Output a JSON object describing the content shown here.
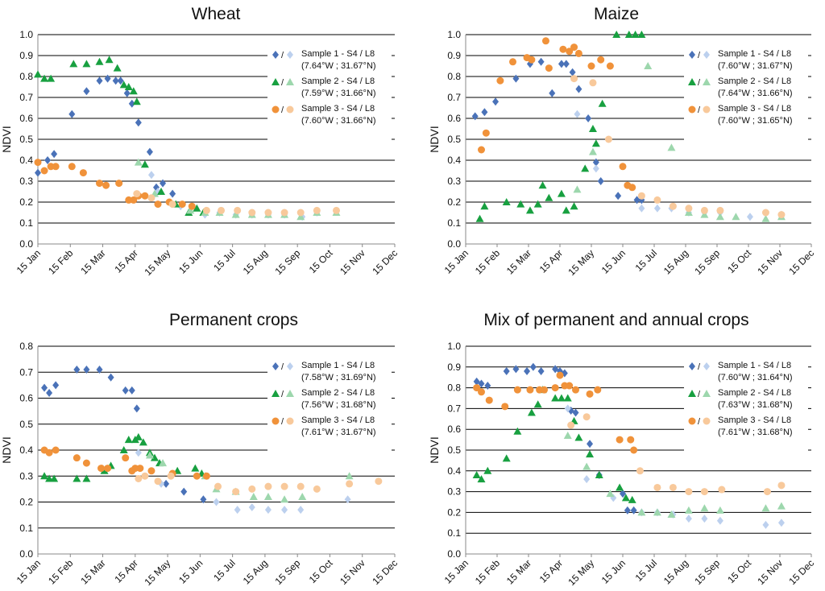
{
  "months": [
    "15 Jan",
    "15 Feb",
    "15 Mar",
    "15 Apr",
    "15 May",
    "15 Jun",
    "15 Jul",
    "15 Aug",
    "15 Sep",
    "15 Oct",
    "15 Nov",
    "15 Dec"
  ],
  "colors": {
    "s4_1": "#4a72b8",
    "l8_1": "#bcd0ee",
    "s4_2": "#18a040",
    "l8_2": "#9dd7ad",
    "s4_3": "#f0923a",
    "l8_3": "#f8c99b"
  },
  "chart_data": [
    {
      "type": "scatter",
      "title": "Wheat",
      "ylabel": "NDVI",
      "ylim": [
        0,
        1
      ],
      "ystep": 0.1,
      "yticks": [
        "0.0",
        "0.1",
        "0.2",
        "0.3",
        "0.4",
        "0.5",
        "0.6",
        "0.7",
        "0.8",
        "0.9",
        "1.0"
      ],
      "xlim": [
        "15 Jan",
        "15 Dec"
      ],
      "legend": [
        {
          "name": "Sample 1 - S4 / L8",
          "coords": "(7.64°W ; 31.67°N)"
        },
        {
          "name": "Sample 2 - S4 / L8",
          "coords": "(7.59°W ; 31.66°N)"
        },
        {
          "name": "Sample 3 - S4 / L8",
          "coords": "(7.60°W ; 31.66°N)"
        }
      ],
      "series": [
        {
          "sample": 1,
          "sensor": "S4",
          "marker": "diamond",
          "x": [
            0,
            0.3,
            0.5,
            1.05,
            1.5,
            1.9,
            2.15,
            2.4,
            2.55,
            2.75,
            2.9,
            3.1,
            3.45,
            3.65,
            3.85,
            4.15
          ],
          "y": [
            0.34,
            0.4,
            0.43,
            0.62,
            0.73,
            0.78,
            0.79,
            0.78,
            0.78,
            0.72,
            0.67,
            0.58,
            0.44,
            0.27,
            0.29,
            0.24
          ]
        },
        {
          "sample": 1,
          "sensor": "L8",
          "marker": "diamond",
          "x": [
            3.5,
            3.7,
            4.4,
            5.15,
            5.6,
            6.1,
            6.6,
            7.1,
            7.6,
            8.15,
            8.6
          ],
          "y": [
            0.33,
            0.25,
            0.18,
            0.14,
            0.15,
            0.14,
            0.14,
            0.14,
            0.14,
            0.13,
            0.15
          ]
        },
        {
          "sample": 2,
          "sensor": "S4",
          "marker": "triangle",
          "x": [
            0,
            0.2,
            0.4,
            1.1,
            1.5,
            1.9,
            2.2,
            2.45,
            2.65,
            2.8,
            2.95,
            3.05,
            3.3,
            3.8,
            4.25,
            4.65,
            4.9,
            5.1
          ],
          "y": [
            0.81,
            0.79,
            0.79,
            0.86,
            0.86,
            0.87,
            0.88,
            0.84,
            0.76,
            0.75,
            0.73,
            0.68,
            0.38,
            0.25,
            0.19,
            0.15,
            0.17,
            0.15
          ]
        },
        {
          "sample": 2,
          "sensor": "L8",
          "marker": "triangle",
          "x": [
            3.1,
            3.6,
            4.7,
            5.15,
            5.6,
            6.1,
            6.6,
            7.1,
            7.6,
            8.1,
            8.6,
            9.2
          ],
          "y": [
            0.39,
            0.24,
            0.16,
            0.15,
            0.15,
            0.14,
            0.14,
            0.14,
            0.14,
            0.13,
            0.15,
            0.15
          ]
        },
        {
          "sample": 3,
          "sensor": "S4",
          "marker": "circle",
          "x": [
            0,
            0.2,
            0.4,
            0.55,
            1.05,
            1.4,
            1.9,
            2.1,
            2.5,
            2.8,
            2.95,
            3.1,
            3.3,
            3.7,
            4.05,
            4.45,
            4.75
          ],
          "y": [
            0.39,
            0.35,
            0.37,
            0.37,
            0.37,
            0.34,
            0.29,
            0.28,
            0.29,
            0.21,
            0.21,
            0.23,
            0.23,
            0.19,
            0.2,
            0.19,
            0.18
          ]
        },
        {
          "sample": 3,
          "sensor": "L8",
          "marker": "circle",
          "x": [
            3.05,
            3.5,
            4.15,
            5.2,
            5.65,
            6.15,
            6.6,
            7.1,
            7.6,
            8.1,
            8.6,
            9.2
          ],
          "y": [
            0.24,
            0.22,
            0.19,
            0.16,
            0.16,
            0.16,
            0.15,
            0.15,
            0.15,
            0.15,
            0.16,
            0.16
          ]
        }
      ]
    },
    {
      "type": "scatter",
      "title": "Maize",
      "ylabel": "NDVI",
      "ylim": [
        0,
        1
      ],
      "ystep": 0.1,
      "yticks": [
        "0.0",
        "0.1",
        "0.2",
        "0.3",
        "0.4",
        "0.5",
        "0.6",
        "0.7",
        "0.8",
        "0.9",
        "1.0"
      ],
      "xlim": [
        "15 Jan",
        "15 Dec"
      ],
      "legend": [
        {
          "name": "Sample 1 - S4 / L8",
          "coords": "(7.60°W ; 31.67°N)"
        },
        {
          "name": "Sample 2 - S4 / L8",
          "coords": "(7.64°W ; 31.66°N)"
        },
        {
          "name": "Sample 3 - S4 / L8",
          "coords": "(7.60°W ; 31.65°N)"
        }
      ],
      "series": [
        {
          "sample": 1,
          "sensor": "S4",
          "marker": "diamond",
          "x": [
            0.3,
            0.6,
            0.95,
            1.6,
            2.05,
            2.4,
            2.75,
            3.05,
            3.2,
            3.4,
            3.6,
            3.9,
            4.15,
            4.3,
            4.85,
            5.45,
            5.6
          ],
          "y": [
            0.61,
            0.63,
            0.68,
            0.79,
            0.86,
            0.87,
            0.72,
            0.86,
            0.86,
            0.82,
            0.74,
            0.6,
            0.39,
            0.3,
            0.23,
            0.21,
            0.21
          ]
        },
        {
          "sample": 1,
          "sensor": "L8",
          "marker": "diamond",
          "x": [
            3.55,
            4.15,
            5.6,
            6.1,
            6.55,
            7.1,
            7.6,
            8.1,
            9.05,
            10.05
          ],
          "y": [
            0.62,
            0.36,
            0.17,
            0.17,
            0.17,
            0.15,
            0.15,
            0.15,
            0.13,
            0.14
          ]
        },
        {
          "sample": 2,
          "sensor": "S4",
          "marker": "triangle",
          "x": [
            0.45,
            0.6,
            1.3,
            1.75,
            2.05,
            2.3,
            2.45,
            2.65,
            3.05,
            3.2,
            3.45,
            3.8,
            4.05,
            4.15,
            4.35,
            4.8,
            5.2,
            5.4,
            5.6
          ],
          "y": [
            0.12,
            0.18,
            0.2,
            0.19,
            0.16,
            0.19,
            0.28,
            0.22,
            0.24,
            0.16,
            0.18,
            0.36,
            0.55,
            0.48,
            0.67,
            1.0,
            1.0,
            1.0,
            1.0
          ]
        },
        {
          "sample": 2,
          "sensor": "L8",
          "marker": "triangle",
          "x": [
            3.55,
            4.05,
            5.8,
            6.55,
            7.1,
            7.6,
            8.1,
            8.6,
            9.55,
            10.05
          ],
          "y": [
            0.26,
            0.44,
            0.85,
            0.46,
            0.15,
            0.14,
            0.13,
            0.13,
            0.12,
            0.13
          ]
        },
        {
          "sample": 3,
          "sensor": "S4",
          "marker": "circle",
          "x": [
            0.5,
            0.65,
            1.1,
            1.5,
            1.95,
            2.1,
            2.55,
            2.65,
            3.1,
            3.3,
            3.45,
            3.6,
            4.0,
            4.3,
            4.6,
            5.0,
            5.15,
            5.3
          ],
          "y": [
            0.45,
            0.53,
            0.78,
            0.87,
            0.89,
            0.88,
            0.97,
            0.84,
            0.93,
            0.92,
            0.94,
            0.91,
            0.85,
            0.88,
            0.85,
            0.37,
            0.28,
            0.27
          ]
        },
        {
          "sample": 3,
          "sensor": "L8",
          "marker": "circle",
          "x": [
            3.45,
            4.05,
            4.55,
            5.6,
            6.1,
            6.6,
            7.1,
            7.6,
            8.1,
            9.55,
            10.05
          ],
          "y": [
            0.79,
            0.77,
            0.5,
            0.23,
            0.21,
            0.18,
            0.17,
            0.16,
            0.16,
            0.15,
            0.14
          ]
        }
      ]
    },
    {
      "type": "scatter",
      "title": "Permanent crops",
      "ylabel": "NDVI",
      "ylim": [
        0,
        0.8
      ],
      "ystep": 0.1,
      "yticks": [
        "0.0",
        "0.1",
        "0.2",
        "0.3",
        "0.4",
        "0.5",
        "0.6",
        "0.7",
        "0.8"
      ],
      "xlim": [
        "15 Jan",
        "15 Dec"
      ],
      "legend": [
        {
          "name": "Sample 1 - S4 / L8",
          "coords": "(7.58°W ; 31.69°N)"
        },
        {
          "name": "Sample 2 - S4 / L8",
          "coords": "(7.56°W ; 31.68°N)"
        },
        {
          "name": "Sample 3 - S4 / L8",
          "coords": "(7.61°W ; 31.67°N)"
        }
      ],
      "series": [
        {
          "sample": 1,
          "sensor": "S4",
          "marker": "diamond",
          "x": [
            0.2,
            0.35,
            0.55,
            1.2,
            1.5,
            1.9,
            2.25,
            2.7,
            2.9,
            3.05,
            3.95,
            4.5,
            5.1
          ],
          "y": [
            0.64,
            0.62,
            0.65,
            0.71,
            0.71,
            0.71,
            0.68,
            0.63,
            0.63,
            0.56,
            0.27,
            0.24,
            0.21
          ]
        },
        {
          "sample": 1,
          "sensor": "L8",
          "marker": "diamond",
          "x": [
            3.1,
            3.8,
            5.5,
            6.15,
            6.6,
            7.1,
            7.6,
            8.1,
            9.55
          ],
          "y": [
            0.39,
            0.27,
            0.2,
            0.17,
            0.18,
            0.17,
            0.17,
            0.17,
            0.21
          ]
        },
        {
          "sample": 2,
          "sensor": "S4",
          "marker": "triangle",
          "x": [
            0.2,
            0.35,
            0.5,
            1.2,
            1.5,
            2.05,
            2.25,
            2.65,
            2.8,
            3.0,
            3.1,
            3.25,
            3.45,
            3.6,
            3.75,
            4.3,
            4.85,
            5.05
          ],
          "y": [
            0.3,
            0.29,
            0.29,
            0.29,
            0.29,
            0.32,
            0.34,
            0.4,
            0.44,
            0.44,
            0.45,
            0.43,
            0.39,
            0.37,
            0.35,
            0.32,
            0.33,
            0.31
          ]
        },
        {
          "sample": 2,
          "sensor": "L8",
          "marker": "triangle",
          "x": [
            3.45,
            3.85,
            5.15,
            5.5,
            6.1,
            6.65,
            7.1,
            7.6,
            8.15,
            9.6
          ],
          "y": [
            0.38,
            0.35,
            0.3,
            0.25,
            0.24,
            0.22,
            0.22,
            0.21,
            0.22,
            0.3
          ]
        },
        {
          "sample": 3,
          "sensor": "S4",
          "marker": "circle",
          "x": [
            0.2,
            0.35,
            0.55,
            1.2,
            1.5,
            1.95,
            2.15,
            2.7,
            2.9,
            3.0,
            3.15,
            3.5,
            4.15,
            4.9,
            5.2
          ],
          "y": [
            0.4,
            0.39,
            0.4,
            0.37,
            0.35,
            0.33,
            0.33,
            0.37,
            0.32,
            0.33,
            0.33,
            0.32,
            0.31,
            0.3,
            0.3
          ]
        },
        {
          "sample": 3,
          "sensor": "L8",
          "marker": "circle",
          "x": [
            3.1,
            3.3,
            3.7,
            4.1,
            5.55,
            6.1,
            6.6,
            7.1,
            7.6,
            8.1,
            8.6,
            9.6,
            10.5
          ],
          "y": [
            0.29,
            0.3,
            0.28,
            0.3,
            0.26,
            0.24,
            0.25,
            0.26,
            0.26,
            0.26,
            0.25,
            0.27,
            0.28
          ]
        }
      ]
    },
    {
      "type": "scatter",
      "title": "Mix of permanent and annual crops",
      "ylabel": "NDVI",
      "ylim": [
        0,
        1
      ],
      "ystep": 0.1,
      "yticks": [
        "0.0",
        "0.1",
        "0.2",
        "0.3",
        "0.4",
        "0.5",
        "0.6",
        "0.7",
        "0.8",
        "0.9",
        "1.0"
      ],
      "xlim": [
        "15 Jan",
        "15 Dec"
      ],
      "legend": [
        {
          "name": "Sample 1 - S4 / L8",
          "coords": "(7.60°W ; 31.64°N)"
        },
        {
          "name": "Sample 2 - S4 / L8",
          "coords": "(7.63°W ; 31.68°N)"
        },
        {
          "name": "Sample 3 - S4 / L8",
          "coords": "(7.61°W ; 31.68°N)"
        }
      ],
      "series": [
        {
          "sample": 1,
          "sensor": "S4",
          "marker": "diamond",
          "x": [
            0.35,
            0.5,
            0.7,
            1.3,
            1.6,
            1.95,
            2.15,
            2.4,
            2.85,
            3.0,
            3.15,
            3.35,
            3.5,
            3.95,
            4.25,
            5.0,
            5.15,
            5.35
          ],
          "y": [
            0.83,
            0.82,
            0.81,
            0.88,
            0.89,
            0.88,
            0.9,
            0.88,
            0.89,
            0.88,
            0.87,
            0.69,
            0.68,
            0.53,
            0.38,
            0.29,
            0.21,
            0.21
          ]
        },
        {
          "sample": 1,
          "sensor": "L8",
          "marker": "diamond",
          "x": [
            3.25,
            3.85,
            4.7,
            5.6,
            6.1,
            6.6,
            7.1,
            7.6,
            8.1,
            9.55,
            10.05
          ],
          "y": [
            0.7,
            0.36,
            0.27,
            0.2,
            0.2,
            0.19,
            0.17,
            0.17,
            0.16,
            0.14,
            0.15
          ]
        },
        {
          "sample": 2,
          "sensor": "S4",
          "marker": "triangle",
          "x": [
            0.35,
            0.5,
            0.7,
            1.3,
            1.65,
            2.1,
            2.3,
            2.45,
            2.85,
            3.05,
            3.25,
            3.45,
            3.6,
            3.95,
            4.25,
            4.9,
            5.1,
            5.3
          ],
          "y": [
            0.38,
            0.36,
            0.4,
            0.46,
            0.59,
            0.68,
            0.72,
            0.79,
            0.75,
            0.75,
            0.75,
            0.64,
            0.56,
            0.48,
            0.38,
            0.32,
            0.27,
            0.26
          ]
        },
        {
          "sample": 2,
          "sensor": "L8",
          "marker": "triangle",
          "x": [
            3.25,
            3.85,
            4.6,
            5.6,
            6.1,
            6.55,
            7.1,
            7.6,
            8.1,
            9.55,
            10.05
          ],
          "y": [
            0.57,
            0.42,
            0.29,
            0.2,
            0.2,
            0.19,
            0.21,
            0.22,
            0.21,
            0.22,
            0.23
          ]
        },
        {
          "sample": 3,
          "sensor": "S4",
          "marker": "circle",
          "x": [
            0.35,
            0.5,
            0.75,
            1.25,
            1.65,
            2.05,
            2.35,
            2.5,
            2.85,
            3.0,
            3.15,
            3.3,
            3.5,
            3.95,
            4.2,
            4.9,
            5.25,
            5.35
          ],
          "y": [
            0.8,
            0.78,
            0.74,
            0.71,
            0.79,
            0.79,
            0.79,
            0.79,
            0.8,
            0.86,
            0.81,
            0.81,
            0.79,
            0.77,
            0.79,
            0.55,
            0.55,
            0.5
          ]
        },
        {
          "sample": 3,
          "sensor": "L8",
          "marker": "circle",
          "x": [
            3.35,
            3.85,
            5.55,
            6.1,
            6.6,
            7.1,
            7.6,
            8.15,
            9.6,
            10.05
          ],
          "y": [
            0.62,
            0.66,
            0.4,
            0.32,
            0.32,
            0.3,
            0.3,
            0.31,
            0.3,
            0.33
          ]
        }
      ]
    }
  ]
}
